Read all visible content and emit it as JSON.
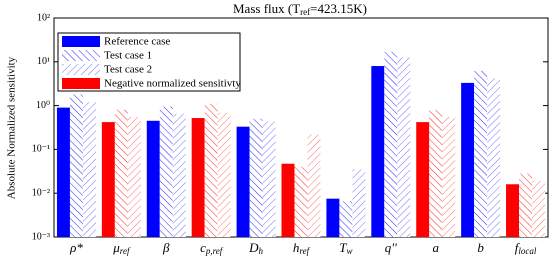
{
  "chart_data": {
    "type": "bar",
    "title": [
      "Mass flux (T",
      "ref",
      "=423.15K)"
    ],
    "y_label": "Absolute Normalized sensitivity",
    "categories": [
      "ρ*",
      "μ",
      "β",
      "c",
      "D",
      "h",
      "T",
      "q''",
      "a",
      "b",
      "f"
    ],
    "category_subscripts": [
      null,
      "ref",
      null,
      "p,ref",
      "h",
      "ref",
      "w",
      null,
      null,
      null,
      "local"
    ],
    "series": [
      {
        "name": "Reference case",
        "color": "#0000ff",
        "fill": "solid",
        "values": [
          0.9,
          0.42,
          0.45,
          0.52,
          0.33,
          0.047,
          0.0075,
          8,
          0.42,
          3.3,
          0.016
        ]
      },
      {
        "name": "Test case 1",
        "color": "#0000ff",
        "fill": "hatch",
        "values": [
          1.8,
          0.8,
          0.95,
          1.1,
          0.5,
          0.04,
          0.0065,
          17,
          0.8,
          6.2,
          0.028
        ]
      },
      {
        "name": "Test case 2",
        "color": "#0000ff",
        "fill": "hatch-light",
        "values": [
          1.2,
          0.55,
          0.65,
          0.68,
          0.43,
          0.22,
          0.035,
          12.5,
          0.55,
          4.2,
          0.019
        ]
      }
    ],
    "negative": [
      false,
      true,
      false,
      true,
      false,
      true,
      false,
      false,
      true,
      false,
      true
    ],
    "negative_name": "Negative normalized sensitivty",
    "negative_color": "#ff0000",
    "log_y": true,
    "ylim": [
      0.001,
      100
    ],
    "yticks": [
      {
        "value": 0.001,
        "label": "10⁻³"
      },
      {
        "value": 0.01,
        "label": "10⁻²"
      },
      {
        "value": 0.1,
        "label": "10⁻¹"
      },
      {
        "value": 1,
        "label": "10⁰"
      },
      {
        "value": 10,
        "label": "10¹"
      },
      {
        "value": 100,
        "label": "10²"
      }
    ],
    "legend": "upper left"
  }
}
